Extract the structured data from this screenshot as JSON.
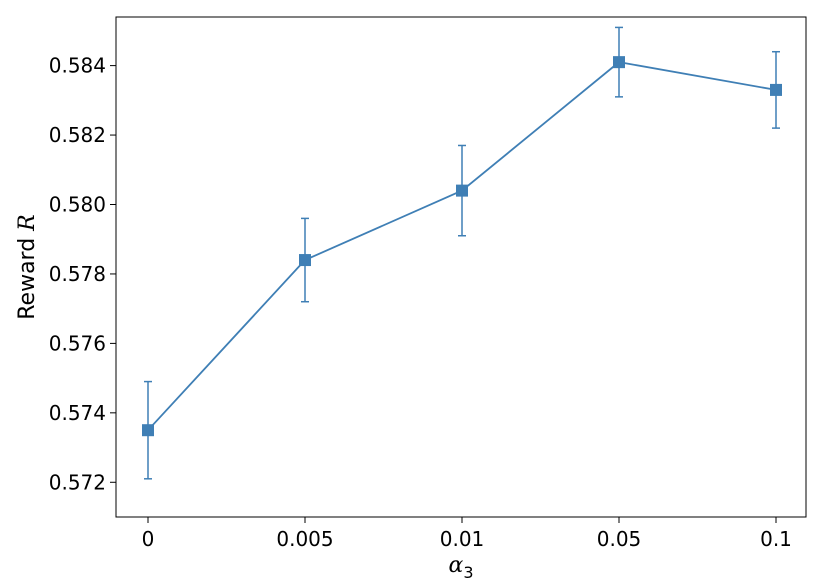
{
  "chart_data": {
    "type": "line",
    "categories": [
      "0",
      "0.005",
      "0.01",
      "0.05",
      "0.1"
    ],
    "series": [
      {
        "values": [
          0.5735,
          0.5784,
          0.5804,
          0.5841,
          0.5833
        ],
        "err_low": [
          0.5721,
          0.5772,
          0.5791,
          0.5831,
          0.5822
        ],
        "err_high": [
          0.5749,
          0.5796,
          0.5817,
          0.5851,
          0.5844
        ],
        "color": "#3f7fb5",
        "marker": "square"
      }
    ],
    "yticks": [
      "0.572",
      "0.574",
      "0.576",
      "0.578",
      "0.580",
      "0.582",
      "0.584"
    ],
    "ylim": [
      0.571,
      0.5854
    ],
    "xlabel": {
      "symbol": "α",
      "subscript": "3"
    },
    "ylabel": {
      "text": "Reward ",
      "symbol": "R"
    },
    "grid": false,
    "legend": "none"
  }
}
